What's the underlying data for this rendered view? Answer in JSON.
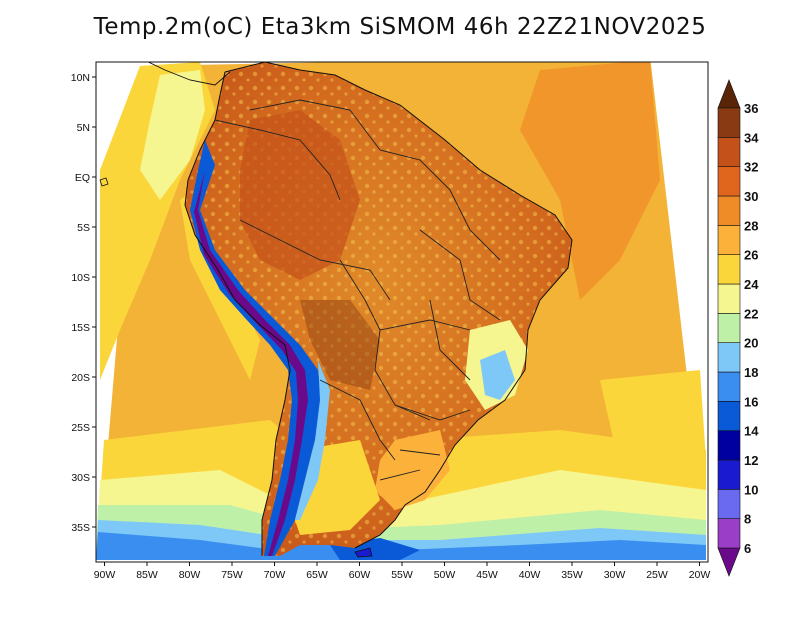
{
  "title": "Temp.2m(oC) Eta3km SiSMOM 46h 22Z21NOV2025",
  "map": {
    "lat_labels": [
      {
        "lat": 10,
        "text": "10N"
      },
      {
        "lat": 5,
        "text": "5N"
      },
      {
        "lat": 0,
        "text": "EQ"
      },
      {
        "lat": -5,
        "text": "5S"
      },
      {
        "lat": -10,
        "text": "10S"
      },
      {
        "lat": -15,
        "text": "15S"
      },
      {
        "lat": -20,
        "text": "20S"
      },
      {
        "lat": -25,
        "text": "25S"
      },
      {
        "lat": -30,
        "text": "30S"
      },
      {
        "lat": -35,
        "text": "35S"
      }
    ],
    "lon_labels": [
      {
        "lon": -90,
        "text": "90W"
      },
      {
        "lon": -85,
        "text": "85W"
      },
      {
        "lon": -80,
        "text": "80W"
      },
      {
        "lon": -75,
        "text": "75W"
      },
      {
        "lon": -70,
        "text": "70W"
      },
      {
        "lon": -65,
        "text": "65W"
      },
      {
        "lon": -60,
        "text": "60W"
      },
      {
        "lon": -55,
        "text": "55W"
      },
      {
        "lon": -50,
        "text": "50W"
      },
      {
        "lon": -45,
        "text": "45W"
      },
      {
        "lon": -40,
        "text": "40W"
      },
      {
        "lon": -35,
        "text": "35W"
      },
      {
        "lon": -30,
        "text": "30W"
      },
      {
        "lon": -25,
        "text": "25W"
      },
      {
        "lon": -20,
        "text": "20W"
      }
    ],
    "lon_range": [
      -91,
      -19
    ],
    "lat_range": [
      -38.5,
      11.5
    ]
  },
  "colorbar": {
    "levels": [
      "6",
      "8",
      "10",
      "12",
      "14",
      "16",
      "18",
      "20",
      "22",
      "24",
      "26",
      "28",
      "30",
      "32",
      "34",
      "36"
    ],
    "colors": [
      "#6a0a8a",
      "#9a3ec8",
      "#6a6af0",
      "#1a1ad0",
      "#0000a0",
      "#0a5ad8",
      "#3a8ef0",
      "#7ec8f8",
      "#bff0a8",
      "#f6f690",
      "#fbd63a",
      "#fbb13a",
      "#f08c28",
      "#e0661e",
      "#c4511a",
      "#8a3a12",
      "#5a2408"
    ]
  },
  "icons": {
    "colorbar_top": "triangle-up",
    "colorbar_bottom": "triangle-down"
  }
}
